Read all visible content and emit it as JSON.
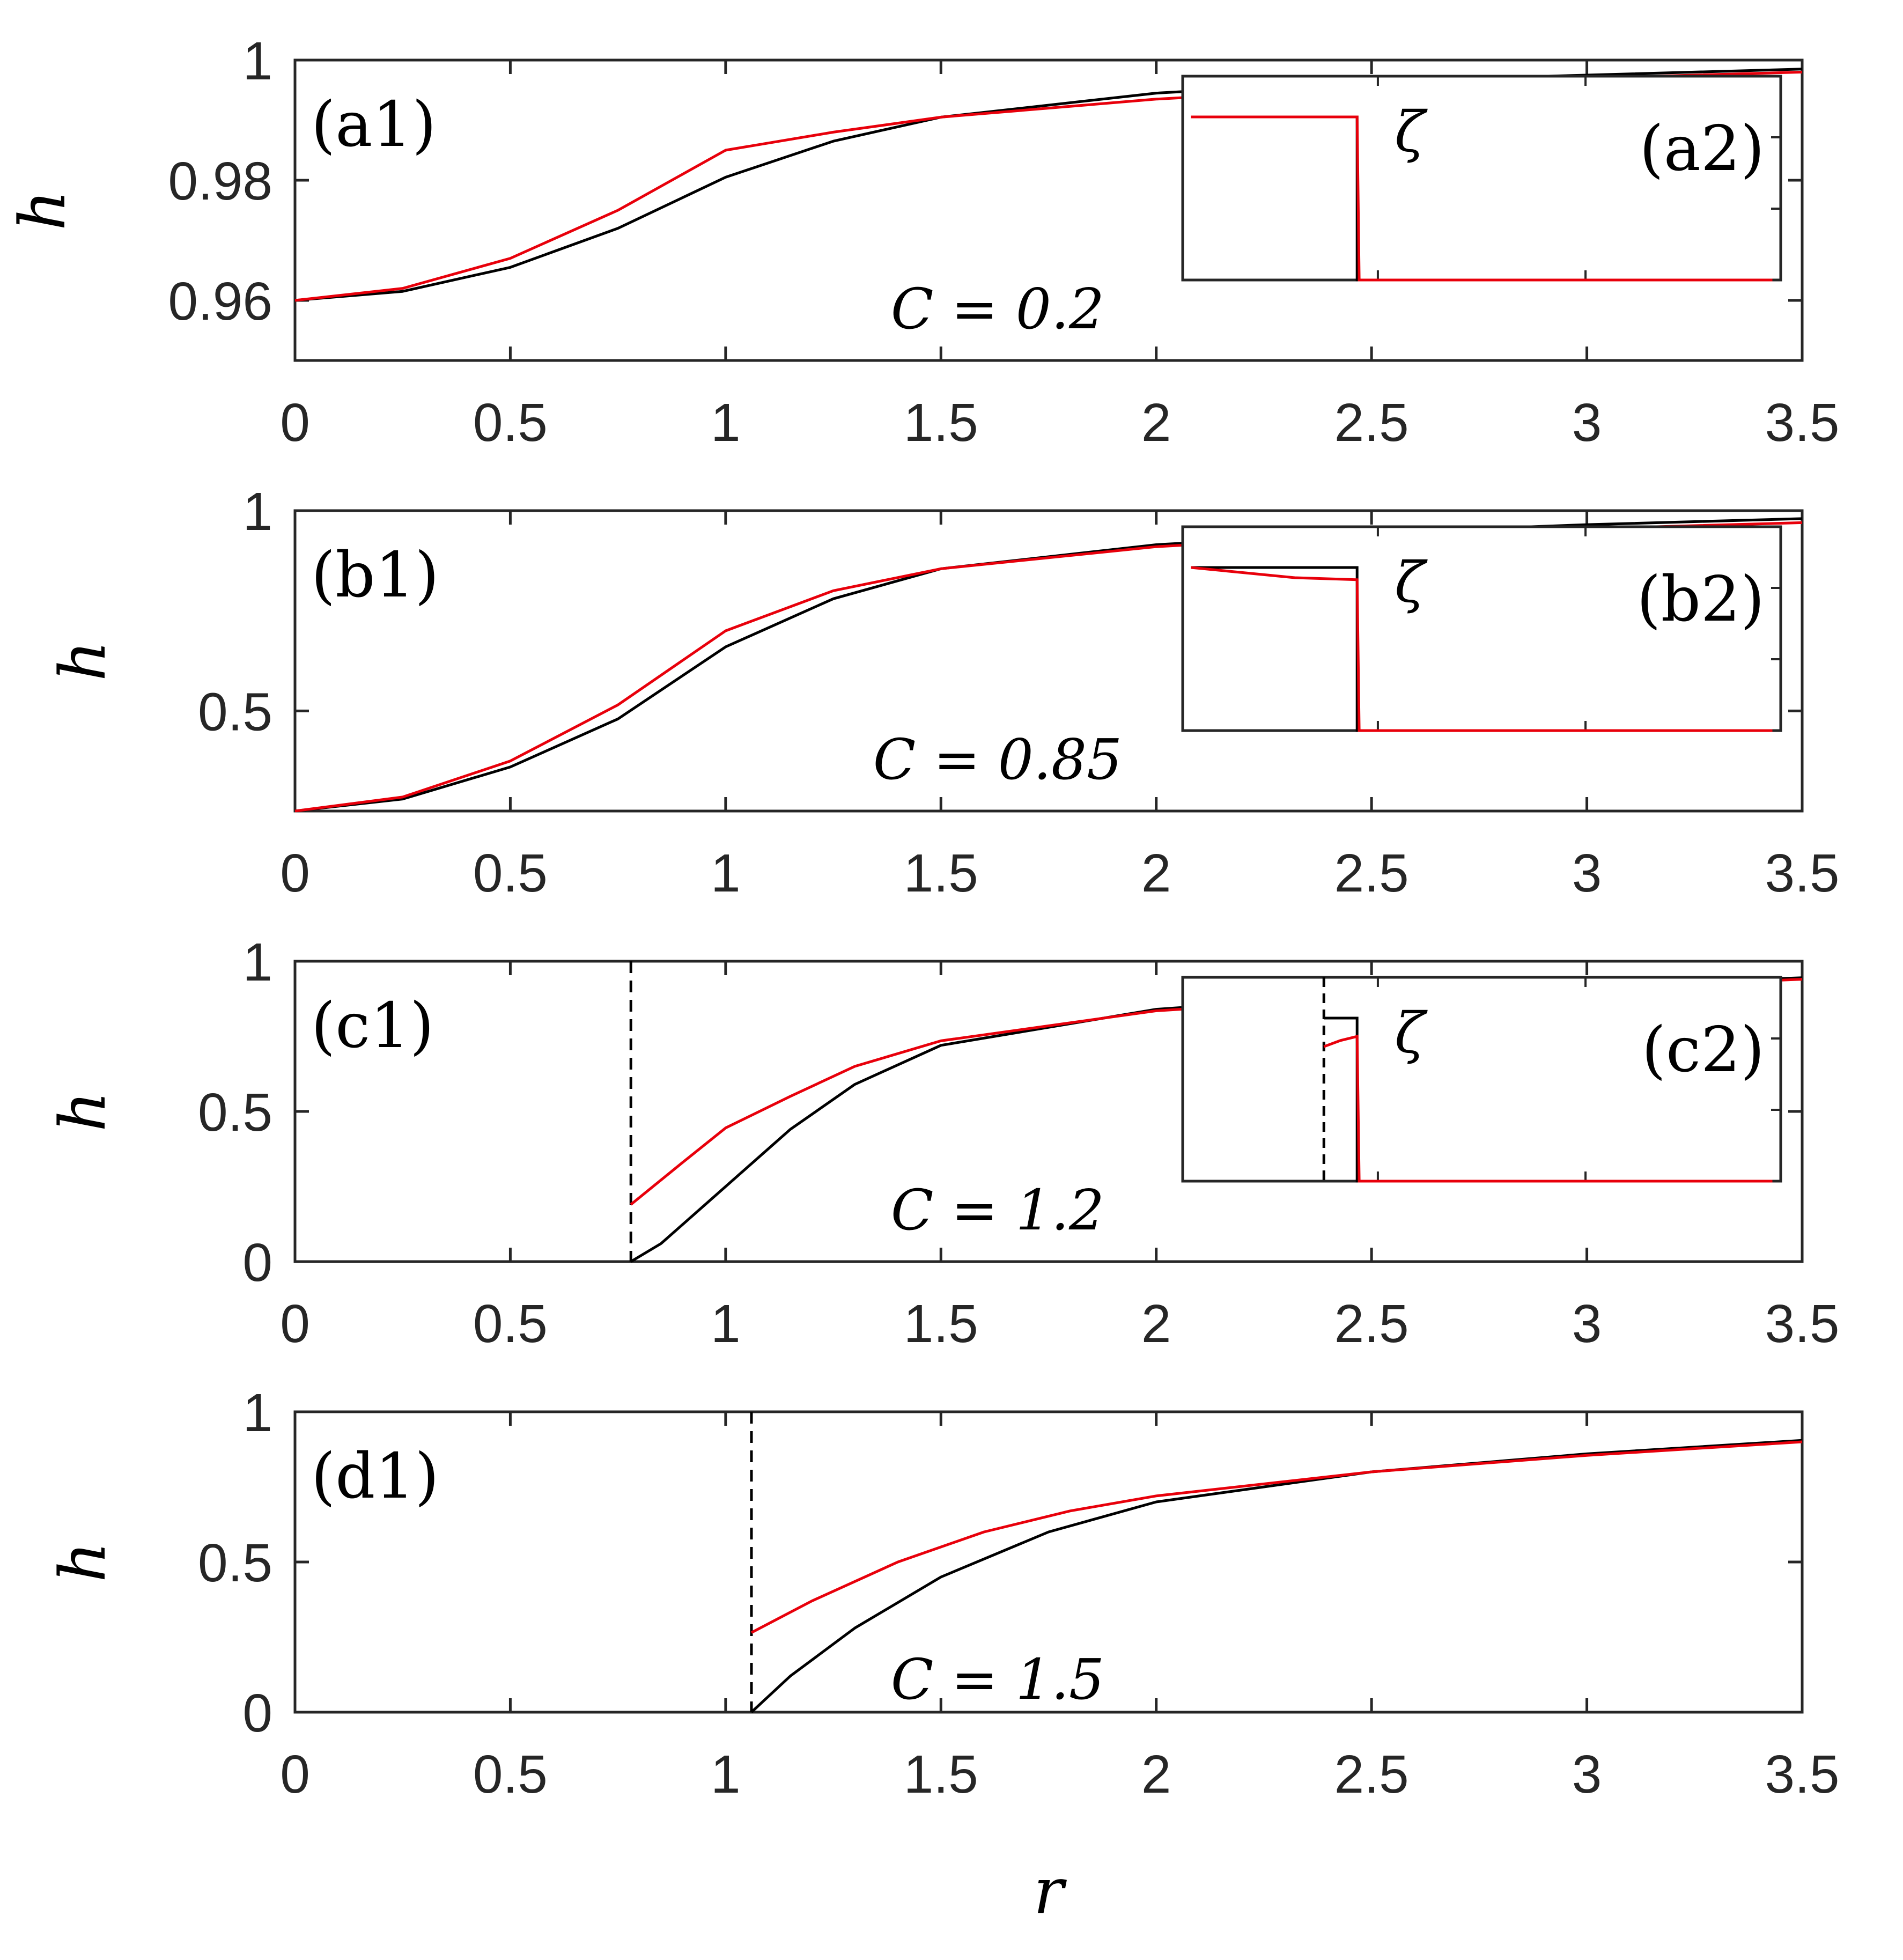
{
  "chart_data": {
    "type": "line",
    "xlabel": "r",
    "ylabel": "h",
    "xlim": [
      0,
      3.5
    ],
    "xticks": [
      "0",
      "0.5",
      "1",
      "1.5",
      "2",
      "2.5",
      "3",
      "3.5"
    ],
    "grid": false,
    "colors": {
      "black_series": "#000000",
      "red_series": "#e8000b",
      "axes": "#262626"
    },
    "panels": [
      {
        "label": "(a1)",
        "annotation": "C = 0.2",
        "ylim": [
          0.95,
          1.0
        ],
        "yticks": [
          {
            "value": 0.96,
            "label": "0.96"
          },
          {
            "value": 0.98,
            "label": "0.98"
          },
          {
            "value": 1.0,
            "label": "1"
          }
        ],
        "contact_line_r": null,
        "series": [
          {
            "color": "#000000",
            "x": [
              0,
              0.25,
              0.5,
              0.75,
              1.0,
              1.25,
              1.5,
              2.0,
              2.5,
              3.0,
              3.5
            ],
            "y": [
              0.96,
              0.9615,
              0.9655,
              0.972,
              0.9805,
              0.9865,
              0.9905,
              0.9945,
              0.9965,
              0.9975,
              0.9985
            ]
          },
          {
            "color": "#e8000b",
            "x": [
              0,
              0.25,
              0.5,
              0.75,
              1.0,
              1.25,
              1.5,
              2.0,
              2.5,
              3.0,
              3.5
            ],
            "y": [
              0.96,
              0.962,
              0.967,
              0.975,
              0.985,
              0.988,
              0.9905,
              0.9935,
              0.9955,
              0.997,
              0.998
            ]
          }
        ],
        "inset": {
          "label": "(a2)",
          "symbol": "ζ",
          "step_r": 2.45,
          "cutoff_r": null,
          "black": {
            "x": [
              2.05,
              2.45,
              2.45,
              3.45
            ],
            "y": [
              0.8,
              0.8,
              0.0,
              0.0
            ]
          },
          "red": {
            "x": [
              2.05,
              2.45,
              2.455,
              3.45
            ],
            "y": [
              0.8,
              0.8,
              0.0,
              0.0
            ]
          }
        }
      },
      {
        "label": "(b1)",
        "annotation": "C = 0.85",
        "ylim": [
          0.25,
          1.0
        ],
        "yticks": [
          {
            "value": 0.5,
            "label": "0.5"
          },
          {
            "value": 1.0,
            "label": "1"
          }
        ],
        "contact_line_r": null,
        "series": [
          {
            "color": "#000000",
            "x": [
              0,
              0.25,
              0.5,
              0.75,
              1.0,
              1.25,
              1.5,
              2.0,
              2.5,
              3.0,
              3.5
            ],
            "y": [
              0.25,
              0.28,
              0.36,
              0.48,
              0.66,
              0.78,
              0.855,
              0.915,
              0.945,
              0.965,
              0.98
            ]
          },
          {
            "color": "#e8000b",
            "x": [
              0,
              0.25,
              0.5,
              0.75,
              1.0,
              1.25,
              1.5,
              2.0,
              2.5,
              3.0,
              3.5
            ],
            "y": [
              0.25,
              0.285,
              0.375,
              0.515,
              0.7,
              0.8,
              0.855,
              0.91,
              0.94,
              0.955,
              0.97
            ]
          }
        ],
        "inset": {
          "label": "(b2)",
          "symbol": "ζ",
          "step_r": 2.45,
          "cutoff_r": null,
          "black": {
            "x": [
              2.05,
              2.45,
              2.45,
              3.45
            ],
            "y": [
              0.8,
              0.8,
              0.0,
              0.0
            ]
          },
          "red": {
            "x": [
              2.05,
              2.15,
              2.3,
              2.45,
              2.455,
              3.45
            ],
            "y": [
              0.8,
              0.78,
              0.75,
              0.74,
              0.0,
              0.0
            ]
          }
        }
      },
      {
        "label": "(c1)",
        "annotation": "C = 1.2",
        "ylim": [
          0,
          1.0
        ],
        "yticks": [
          {
            "value": 0,
            "label": "0"
          },
          {
            "value": 0.5,
            "label": "0.5"
          },
          {
            "value": 1.0,
            "label": "1"
          }
        ],
        "contact_line_r": 0.78,
        "series": [
          {
            "color": "#000000",
            "x": [
              0.78,
              0.85,
              1.0,
              1.15,
              1.3,
              1.5,
              2.0,
              2.5,
              3.0,
              3.5
            ],
            "y": [
              0.0,
              0.06,
              0.25,
              0.44,
              0.59,
              0.72,
              0.84,
              0.89,
              0.92,
              0.945
            ]
          },
          {
            "color": "#e8000b",
            "x": [
              0.78,
              0.9,
              1.0,
              1.15,
              1.3,
              1.5,
              2.0,
              2.5,
              3.0,
              3.5
            ],
            "y": [
              0.19,
              0.33,
              0.445,
              0.55,
              0.65,
              0.735,
              0.835,
              0.88,
              0.91,
              0.94
            ]
          }
        ],
        "inset": {
          "label": "(c2)",
          "symbol": "ζ",
          "step_r": 2.45,
          "cutoff_r": 2.37,
          "black": {
            "x": [
              2.37,
              2.45,
              2.45,
              3.45
            ],
            "y": [
              0.8,
              0.8,
              0.0,
              0.0
            ]
          },
          "red": {
            "x": [
              2.37,
              2.41,
              2.45,
              2.455,
              3.45
            ],
            "y": [
              0.66,
              0.69,
              0.71,
              0.0,
              0.0
            ]
          }
        }
      },
      {
        "label": "(d1)",
        "annotation": "C = 1.5",
        "ylim": [
          0,
          1.0
        ],
        "yticks": [
          {
            "value": 0,
            "label": "0"
          },
          {
            "value": 0.5,
            "label": "0.5"
          },
          {
            "value": 1.0,
            "label": "1"
          }
        ],
        "contact_line_r": 1.06,
        "series": [
          {
            "color": "#000000",
            "x": [
              1.06,
              1.15,
              1.3,
              1.5,
              1.75,
              2.0,
              2.5,
              3.0,
              3.5
            ],
            "y": [
              0.0,
              0.12,
              0.28,
              0.45,
              0.6,
              0.7,
              0.8,
              0.86,
              0.905
            ]
          },
          {
            "color": "#e8000b",
            "x": [
              1.06,
              1.2,
              1.4,
              1.6,
              1.8,
              2.0,
              2.5,
              3.0,
              3.5
            ],
            "y": [
              0.265,
              0.37,
              0.5,
              0.6,
              0.67,
              0.72,
              0.8,
              0.855,
              0.9
            ]
          }
        ],
        "inset": null
      }
    ]
  }
}
